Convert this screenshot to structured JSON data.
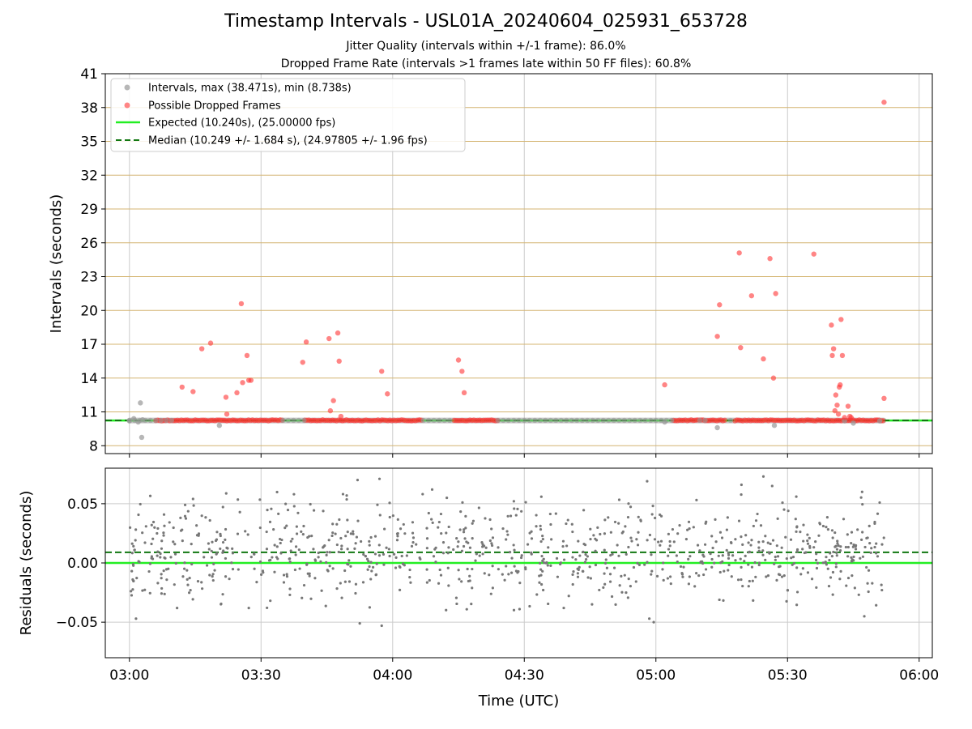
{
  "title": "Timestamp Intervals - USL01A_20240604_025931_653728",
  "subtitle_1": "Jitter Quality (intervals within +/-1 frame): 86.0%",
  "subtitle_2": "Dropped Frame Rate (intervals >1 frames late within 50 FF files): 60.8%",
  "colors": {
    "interval": "#999999",
    "dropped": "#ff3333",
    "expected": "#22ee22",
    "median": "#117711",
    "hgrid": "#d4b470",
    "grid": "#cccccc",
    "residual": "#777777"
  },
  "chart_data": [
    {
      "type": "scatter",
      "ylabel": "Intervals (seconds)",
      "ylim": [
        7.3,
        41
      ],
      "xlim_minutes": [
        -5.5,
        183
      ],
      "yticks": [
        8,
        11,
        14,
        17,
        20,
        23,
        26,
        29,
        32,
        35,
        38,
        41
      ],
      "horizontal_grid": true,
      "legend_position": "top-left",
      "legend": [
        "Intervals, max (38.471s), min (8.738s)",
        "Possible Dropped Frames",
        "Expected (10.240s), (25.00000 fps)",
        "Median (10.249 +/- 1.684 s), (24.97805 +/- 1.96 fps)"
      ],
      "expected": 10.24,
      "median": 10.249,
      "baseline_band_minutes": [
        0,
        172
      ],
      "baseline_normal_runs_minutes": [
        [
          0,
          10
        ],
        [
          35,
          40
        ],
        [
          67,
          74
        ],
        [
          84,
          124
        ],
        [
          130,
          132
        ],
        [
          137,
          138
        ]
      ],
      "dropped_run_ranges_minutes": [
        [
          6,
          35
        ],
        [
          40,
          67
        ],
        [
          74,
          84
        ],
        [
          124,
          136
        ],
        [
          138,
          172
        ]
      ],
      "interval_points": [
        {
          "t": 0.0,
          "v": 10.2
        },
        {
          "t": 1.0,
          "v": 10.4
        },
        {
          "t": 2.0,
          "v": 10.1
        },
        {
          "t": 2.5,
          "v": 11.8
        },
        {
          "t": 2.8,
          "v": 8.74
        },
        {
          "t": 3.0,
          "v": 10.3
        },
        {
          "t": 20.5,
          "v": 9.8
        },
        {
          "t": 122.0,
          "v": 10.1
        },
        {
          "t": 134.0,
          "v": 9.6
        },
        {
          "t": 147.0,
          "v": 9.8
        },
        {
          "t": 163.0,
          "v": 10.2
        },
        {
          "t": 165.0,
          "v": 10.0
        },
        {
          "t": 171.0,
          "v": 10.2
        }
      ],
      "dropped_points": [
        {
          "t": 12.0,
          "v": 13.2
        },
        {
          "t": 14.5,
          "v": 12.8
        },
        {
          "t": 16.5,
          "v": 16.6
        },
        {
          "t": 18.5,
          "v": 17.1
        },
        {
          "t": 22.0,
          "v": 12.3
        },
        {
          "t": 22.2,
          "v": 10.8
        },
        {
          "t": 24.5,
          "v": 12.7
        },
        {
          "t": 25.5,
          "v": 20.6
        },
        {
          "t": 25.8,
          "v": 13.6
        },
        {
          "t": 26.8,
          "v": 16.0
        },
        {
          "t": 27.2,
          "v": 13.8
        },
        {
          "t": 27.7,
          "v": 13.8
        },
        {
          "t": 39.5,
          "v": 15.4
        },
        {
          "t": 40.3,
          "v": 17.2
        },
        {
          "t": 45.5,
          "v": 17.5
        },
        {
          "t": 45.8,
          "v": 11.1
        },
        {
          "t": 46.5,
          "v": 12.0
        },
        {
          "t": 47.5,
          "v": 18.0
        },
        {
          "t": 47.8,
          "v": 15.5
        },
        {
          "t": 48.2,
          "v": 10.6
        },
        {
          "t": 57.5,
          "v": 14.6
        },
        {
          "t": 58.8,
          "v": 12.6
        },
        {
          "t": 75.0,
          "v": 15.6
        },
        {
          "t": 75.8,
          "v": 14.6
        },
        {
          "t": 76.3,
          "v": 12.7
        },
        {
          "t": 122.0,
          "v": 13.4
        },
        {
          "t": 134.0,
          "v": 17.7
        },
        {
          "t": 134.5,
          "v": 20.5
        },
        {
          "t": 139.0,
          "v": 25.1
        },
        {
          "t": 139.3,
          "v": 16.7
        },
        {
          "t": 141.8,
          "v": 21.3
        },
        {
          "t": 144.5,
          "v": 15.7
        },
        {
          "t": 146.0,
          "v": 24.6
        },
        {
          "t": 146.8,
          "v": 14.0
        },
        {
          "t": 147.3,
          "v": 21.5
        },
        {
          "t": 156.0,
          "v": 25.0
        },
        {
          "t": 160.0,
          "v": 18.7
        },
        {
          "t": 160.2,
          "v": 16.0
        },
        {
          "t": 160.5,
          "v": 16.6
        },
        {
          "t": 160.8,
          "v": 11.1
        },
        {
          "t": 161.0,
          "v": 12.5
        },
        {
          "t": 161.3,
          "v": 11.6
        },
        {
          "t": 161.6,
          "v": 10.8
        },
        {
          "t": 161.8,
          "v": 13.2
        },
        {
          "t": 162.0,
          "v": 13.4
        },
        {
          "t": 162.2,
          "v": 19.2
        },
        {
          "t": 162.5,
          "v": 16.0
        },
        {
          "t": 163.0,
          "v": 10.5
        },
        {
          "t": 163.8,
          "v": 11.5
        },
        {
          "t": 164.2,
          "v": 10.6
        },
        {
          "t": 164.5,
          "v": 10.5
        },
        {
          "t": 172.0,
          "v": 38.47
        },
        {
          "t": 172.0,
          "v": 12.2
        }
      ]
    },
    {
      "type": "scatter",
      "ylabel": "Residuals (seconds)",
      "xlabel": "Time (UTC)",
      "ylim": [
        -0.08,
        0.08
      ],
      "xlim_minutes": [
        -5.5,
        183
      ],
      "yticks": [
        -0.05,
        0.0,
        0.05
      ],
      "ytick_labels": [
        "−0.05",
        "0.00",
        "0.05"
      ],
      "grid": true,
      "expected": 0.0,
      "median": 0.009,
      "point_range_minutes": [
        0,
        172
      ],
      "point_count": 900,
      "residual_highlights": [
        {
          "t": 1.5,
          "v": -0.047
        },
        {
          "t": 14.5,
          "v": 0.054
        },
        {
          "t": 37.5,
          "v": 0.058
        },
        {
          "t": 52.0,
          "v": 0.07
        },
        {
          "t": 57.0,
          "v": 0.071
        },
        {
          "t": 52.5,
          "v": -0.051
        },
        {
          "t": 57.5,
          "v": -0.053
        },
        {
          "t": 69.0,
          "v": 0.062
        },
        {
          "t": 99.0,
          "v": -0.038
        },
        {
          "t": 118.0,
          "v": 0.069
        },
        {
          "t": 118.5,
          "v": -0.047
        },
        {
          "t": 119.5,
          "v": -0.05
        },
        {
          "t": 139.5,
          "v": 0.066
        },
        {
          "t": 144.5,
          "v": 0.073
        },
        {
          "t": 146.5,
          "v": 0.065
        },
        {
          "t": 152.0,
          "v": 0.056
        },
        {
          "t": 167.0,
          "v": 0.06
        },
        {
          "t": 167.5,
          "v": -0.045
        },
        {
          "t": 171.0,
          "v": 0.051
        }
      ],
      "xtick_minutes": [
        0,
        30,
        60,
        90,
        120,
        150,
        180
      ],
      "xtick_labels": [
        "03:00",
        "03:30",
        "04:00",
        "04:30",
        "05:00",
        "05:30",
        "06:00"
      ]
    }
  ]
}
